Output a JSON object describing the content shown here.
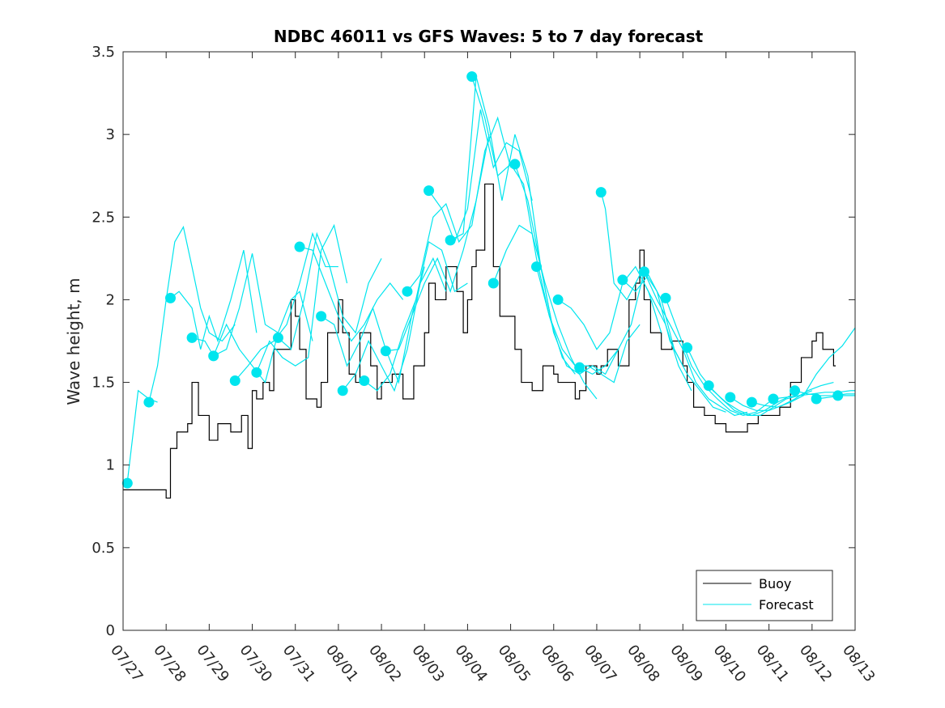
{
  "chart_data": {
    "type": "line",
    "title": "NDBC 46011 vs GFS Waves: 5 to 7 day forecast",
    "xlabel": "",
    "ylabel": "Wave height, m",
    "x_tick_labels": [
      "07/27",
      "07/28",
      "07/29",
      "07/30",
      "07/31",
      "08/01",
      "08/02",
      "08/03",
      "08/04",
      "08/05",
      "08/06",
      "08/07",
      "08/08",
      "08/09",
      "08/10",
      "08/11",
      "08/12",
      "08/13"
    ],
    "xlim_days": [
      0,
      17
    ],
    "ylim": [
      0,
      3.5
    ],
    "y_ticks": [
      "0",
      "0.5",
      "1",
      "1.5",
      "2",
      "2.5",
      "3",
      "3.5"
    ],
    "grid": false,
    "legend_position": "bottom-right",
    "colors": {
      "buoy": "#000000",
      "forecast": "#00e5ee",
      "axis": "#262626"
    },
    "series": [
      {
        "name": "Buoy",
        "style": "step",
        "x": [
          0,
          0.25,
          0.5,
          0.75,
          1,
          1.1,
          1.25,
          1.5,
          1.6,
          1.75,
          2,
          2.2,
          2.5,
          2.75,
          2.9,
          3,
          3.1,
          3.25,
          3.4,
          3.5,
          3.75,
          3.9,
          4,
          4.1,
          4.25,
          4.5,
          4.6,
          4.75,
          5,
          5.1,
          5.25,
          5.4,
          5.5,
          5.75,
          5.9,
          6,
          6.1,
          6.25,
          6.5,
          6.75,
          7,
          7.1,
          7.25,
          7.5,
          7.75,
          7.9,
          8,
          8.1,
          8.2,
          8.4,
          8.6,
          8.75,
          9,
          9.1,
          9.25,
          9.5,
          9.75,
          10,
          10.1,
          10.25,
          10.5,
          10.6,
          10.75,
          11,
          11.1,
          11.25,
          11.5,
          11.75,
          11.9,
          12,
          12.1,
          12.25,
          12.5,
          12.75,
          13,
          13.1,
          13.25,
          13.5,
          13.75,
          14,
          14.25,
          14.5,
          14.75,
          15,
          15.25,
          15.5,
          15.75,
          16,
          16.1,
          16.25,
          16.5
        ],
        "y": [
          0.85,
          0.85,
          0.85,
          0.85,
          0.8,
          1.1,
          1.2,
          1.25,
          1.5,
          1.3,
          1.15,
          1.25,
          1.2,
          1.3,
          1.1,
          1.45,
          1.4,
          1.5,
          1.45,
          1.7,
          1.7,
          2.0,
          1.9,
          1.7,
          1.4,
          1.35,
          1.5,
          1.8,
          2.0,
          1.8,
          1.55,
          1.5,
          1.8,
          1.6,
          1.4,
          1.5,
          1.5,
          1.55,
          1.4,
          1.6,
          1.8,
          2.1,
          2.0,
          2.2,
          2.05,
          1.8,
          2.0,
          2.2,
          2.3,
          2.7,
          2.2,
          1.9,
          1.9,
          1.7,
          1.5,
          1.45,
          1.6,
          1.55,
          1.5,
          1.5,
          1.4,
          1.45,
          1.6,
          1.55,
          1.6,
          1.7,
          1.6,
          2.0,
          2.1,
          2.3,
          2.0,
          1.8,
          1.7,
          1.75,
          1.6,
          1.5,
          1.35,
          1.3,
          1.25,
          1.2,
          1.2,
          1.25,
          1.3,
          1.3,
          1.35,
          1.5,
          1.65,
          1.75,
          1.8,
          1.7,
          1.6
        ]
      },
      {
        "name": "Forecast",
        "lines": [
          {
            "x": [
              0.1,
              0.35,
              0.6,
              0.8
            ],
            "y": [
              0.9,
              1.45,
              1.4,
              1.38
            ]
          },
          {
            "x": [
              0.6,
              0.8,
              1,
              1.2,
              1.4,
              1.6,
              1.8,
              2,
              2.3,
              2.6
            ],
            "y": [
              1.38,
              1.6,
              2.0,
              2.35,
              2.44,
              2.2,
              1.95,
              1.8,
              1.75,
              1.85
            ]
          },
          {
            "x": [
              1.1,
              1.3,
              1.6,
              1.8,
              2.0,
              2.2,
              2.5,
              2.8,
              3.1
            ],
            "y": [
              2.01,
              2.05,
              1.95,
              1.7,
              1.9,
              1.75,
              2.0,
              2.3,
              1.8
            ]
          },
          {
            "x": [
              1.6,
              1.9,
              2.1,
              2.4,
              2.7,
              3.0,
              3.3,
              3.6
            ],
            "y": [
              1.77,
              1.75,
              1.66,
              1.7,
              1.95,
              2.28,
              1.85,
              1.8
            ]
          },
          {
            "x": [
              2.1,
              2.4,
              2.7,
              3.0,
              3.3,
              3.6,
              3.9,
              4.1,
              4.4
            ],
            "y": [
              1.66,
              1.85,
              1.7,
              1.6,
              1.5,
              1.8,
              2.0,
              2.05,
              1.75
            ]
          },
          {
            "x": [
              2.6,
              2.9,
              3.2,
              3.5,
              3.8,
              4.1,
              4.4,
              4.7,
              5.0
            ],
            "y": [
              1.51,
              1.6,
              1.7,
              1.75,
              1.85,
              2.1,
              2.4,
              2.2,
              2.2
            ]
          },
          {
            "x": [
              3.1,
              3.4,
              3.7,
              4.0,
              4.3,
              4.6,
              4.9,
              5.2
            ],
            "y": [
              1.56,
              1.75,
              1.65,
              1.6,
              1.65,
              2.3,
              2.45,
              2.1
            ]
          },
          {
            "x": [
              3.6,
              3.9,
              4.2,
              4.5,
              4.8,
              5.1,
              5.4,
              5.7,
              6.0
            ],
            "y": [
              1.77,
              1.7,
              2.0,
              2.4,
              2.2,
              1.9,
              1.8,
              2.1,
              2.25
            ]
          },
          {
            "x": [
              4.1,
              4.4,
              4.7,
              5.0,
              5.3,
              5.6,
              5.9,
              6.2,
              6.5
            ],
            "y": [
              2.32,
              2.3,
              2.1,
              1.9,
              1.75,
              1.85,
              2.0,
              2.1,
              2.0
            ]
          },
          {
            "x": [
              4.6,
              4.9,
              5.2,
              5.5,
              5.8,
              6.1,
              6.4,
              6.7,
              7.0
            ],
            "y": [
              1.9,
              1.85,
              1.6,
              1.75,
              1.95,
              1.7,
              1.5,
              1.9,
              2.2
            ]
          },
          {
            "x": [
              5.1,
              5.4,
              5.7,
              6.0,
              6.3,
              6.6,
              6.9,
              7.2,
              7.5
            ],
            "y": [
              1.45,
              1.55,
              1.75,
              1.6,
              1.45,
              1.7,
              2.1,
              2.25,
              2.05
            ]
          },
          {
            "x": [
              5.6,
              5.9,
              6.2,
              6.5,
              6.8,
              7.1,
              7.4,
              7.7,
              8.0
            ],
            "y": [
              1.51,
              1.45,
              1.55,
              1.8,
              2.0,
              2.35,
              2.3,
              2.05,
              2.1
            ]
          },
          {
            "x": [
              6.1,
              6.4,
              6.7,
              7.0,
              7.3,
              7.6,
              7.9,
              8.2,
              8.5
            ],
            "y": [
              1.69,
              1.7,
              1.9,
              2.1,
              2.25,
              2.05,
              2.3,
              2.6,
              3.0
            ]
          },
          {
            "x": [
              6.6,
              6.9,
              7.2,
              7.5,
              7.8,
              8.1,
              8.4,
              8.7,
              9.0
            ],
            "y": [
              2.05,
              2.15,
              2.5,
              2.58,
              2.35,
              2.45,
              2.9,
              3.1,
              2.8
            ]
          },
          {
            "x": [
              7.1,
              7.4,
              7.7,
              8.0,
              8.3,
              8.6,
              8.9,
              9.2,
              9.5
            ],
            "y": [
              2.66,
              2.55,
              2.35,
              2.55,
              3.15,
              2.8,
              2.95,
              2.9,
              2.6
            ]
          },
          {
            "x": [
              7.6,
              7.9,
              8.2,
              8.5,
              8.8,
              9.1,
              9.4,
              9.7,
              10.0
            ],
            "y": [
              2.36,
              2.4,
              3.35,
              3.05,
              2.6,
              3.0,
              2.75,
              2.2,
              1.8
            ]
          },
          {
            "x": [
              8.1,
              8.4,
              8.7,
              9.0,
              9.3,
              9.6,
              9.9,
              10.2,
              10.5
            ],
            "y": [
              3.35,
              3.1,
              2.75,
              2.82,
              2.7,
              2.25,
              1.9,
              1.65,
              1.55
            ]
          },
          {
            "x": [
              8.6,
              8.9,
              9.2,
              9.5,
              9.8,
              10.1,
              10.4,
              10.7,
              11.0
            ],
            "y": [
              2.1,
              2.3,
              2.45,
              2.4,
              2.1,
              1.85,
              1.65,
              1.5,
              1.4
            ]
          },
          {
            "x": [
              9.1,
              9.4,
              9.7,
              10.0,
              10.3,
              10.6,
              10.9,
              11.2,
              11.5
            ],
            "y": [
              2.82,
              2.6,
              2.2,
              1.8,
              1.6,
              1.55,
              1.6,
              1.55,
              1.7
            ]
          },
          {
            "x": [
              9.6,
              9.9,
              10.2,
              10.5,
              10.8,
              11.1,
              11.4,
              11.7,
              12.0
            ],
            "y": [
              2.2,
              1.9,
              1.7,
              1.6,
              1.6,
              1.55,
              1.5,
              1.75,
              1.85
            ]
          },
          {
            "x": [
              10.1,
              10.4,
              10.7,
              11.0,
              11.3,
              11.6,
              11.9,
              12.2,
              12.5
            ],
            "y": [
              2.0,
              1.95,
              1.85,
              1.7,
              1.8,
              2.1,
              2.2,
              2.05,
              1.8
            ]
          },
          {
            "x": [
              10.6,
              10.9,
              11.2,
              11.5,
              11.8,
              12.1,
              12.4,
              12.7,
              13.0
            ],
            "y": [
              1.59,
              1.55,
              1.6,
              1.7,
              1.85,
              2.17,
              2.05,
              1.75,
              1.6
            ]
          },
          {
            "x": [
              11.1,
              11.2,
              11.4,
              11.7,
              12.0,
              12.3,
              12.6,
              12.9,
              13.2
            ],
            "y": [
              2.65,
              2.55,
              2.1,
              2.0,
              2.15,
              2.0,
              1.85,
              1.6,
              1.45
            ]
          },
          {
            "x": [
              11.6,
              11.9,
              12.2,
              12.5,
              12.8,
              13.1,
              13.4,
              13.7,
              14.0
            ],
            "y": [
              2.12,
              2.05,
              2.15,
              2.0,
              1.7,
              1.55,
              1.45,
              1.35,
              1.32
            ]
          },
          {
            "x": [
              12.1,
              12.4,
              12.7,
              13.0,
              13.3,
              13.6,
              13.9,
              14.2,
              14.5
            ],
            "y": [
              2.17,
              2.0,
              1.85,
              1.7,
              1.5,
              1.4,
              1.35,
              1.3,
              1.32
            ]
          },
          {
            "x": [
              12.6,
              12.9,
              13.2,
              13.5,
              13.8,
              14.1,
              14.4,
              14.7,
              15.0
            ],
            "y": [
              2.01,
              1.8,
              1.6,
              1.48,
              1.4,
              1.33,
              1.3,
              1.32,
              1.38
            ]
          },
          {
            "x": [
              13.1,
              13.4,
              13.7,
              14.0,
              14.3,
              14.6,
              14.9,
              15.2,
              15.5
            ],
            "y": [
              1.71,
              1.55,
              1.45,
              1.38,
              1.33,
              1.3,
              1.33,
              1.38,
              1.42
            ]
          },
          {
            "x": [
              13.6,
              13.9,
              14.2,
              14.5,
              14.8,
              15.1,
              15.4,
              15.7,
              16.0
            ],
            "y": [
              1.48,
              1.4,
              1.33,
              1.3,
              1.3,
              1.35,
              1.4,
              1.42,
              1.45
            ]
          },
          {
            "x": [
              14.1,
              14.4,
              14.7,
              15.0,
              15.3,
              15.6,
              15.9,
              16.2,
              16.5
            ],
            "y": [
              1.41,
              1.36,
              1.33,
              1.33,
              1.36,
              1.4,
              1.45,
              1.48,
              1.5
            ]
          },
          {
            "x": [
              14.6,
              14.9,
              15.2,
              15.5,
              15.8,
              16.1,
              16.4,
              16.7,
              17.0
            ],
            "y": [
              1.38,
              1.36,
              1.35,
              1.38,
              1.42,
              1.55,
              1.65,
              1.72,
              1.83
            ]
          },
          {
            "x": [
              15.1,
              15.4,
              15.7,
              16.0,
              16.3,
              16.6,
              16.9,
              17.0
            ],
            "y": [
              1.4,
              1.41,
              1.42,
              1.43,
              1.44,
              1.44,
              1.45,
              1.45
            ]
          },
          {
            "x": [
              15.6,
              15.9,
              16.2,
              16.5,
              16.8,
              17.0
            ],
            "y": [
              1.45,
              1.43,
              1.42,
              1.42,
              1.43,
              1.43
            ]
          },
          {
            "x": [
              16.1,
              16.4,
              16.7,
              17.0
            ],
            "y": [
              1.4,
              1.41,
              1.42,
              1.42
            ]
          },
          {
            "x": [
              16.6,
              16.8,
              17.0
            ],
            "y": [
              1.42,
              1.42,
              1.42
            ]
          }
        ],
        "markers": {
          "x": [
            0.1,
            0.6,
            1.1,
            1.6,
            2.1,
            2.6,
            3.1,
            3.6,
            4.1,
            4.6,
            5.1,
            5.6,
            6.1,
            6.6,
            7.1,
            7.6,
            8.1,
            8.6,
            9.1,
            9.6,
            10.1,
            10.6,
            11.1,
            11.6,
            12.1,
            12.6,
            13.1,
            13.6,
            14.1,
            14.6,
            15.1,
            15.6,
            16.1,
            16.6
          ],
          "y": [
            0.89,
            1.38,
            2.01,
            1.77,
            1.66,
            1.51,
            1.56,
            1.77,
            2.32,
            1.9,
            1.45,
            1.51,
            1.69,
            2.05,
            2.66,
            2.36,
            3.35,
            2.1,
            2.82,
            2.2,
            2.0,
            1.59,
            2.65,
            2.12,
            2.17,
            2.01,
            1.71,
            1.48,
            1.41,
            1.38,
            1.4,
            1.45,
            1.4,
            1.42
          ]
        }
      }
    ]
  }
}
